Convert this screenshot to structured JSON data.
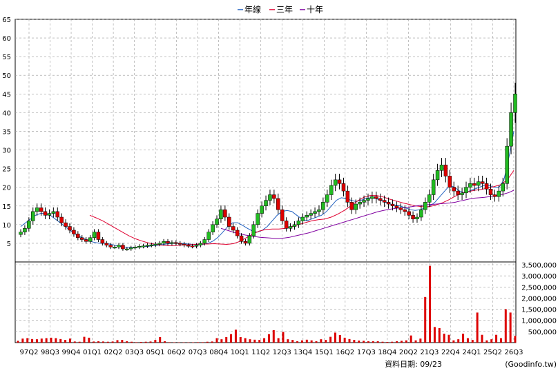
{
  "legend": {
    "items": [
      {
        "label": "年線",
        "color": "#2060c0"
      },
      {
        "label": "三年",
        "color": "#e00030"
      },
      {
        "label": "十年",
        "color": "#8000a0"
      }
    ]
  },
  "footer": {
    "date_label": "資料日期: 09/23",
    "source": "(Goodinfo.tw)"
  },
  "colors": {
    "up_candle": "#22bb22",
    "down_candle": "#dd0000",
    "volume_bar": "#dd0000",
    "grid": "#999999",
    "axis": "#000000"
  },
  "chart_data": [
    {
      "type": "candlestick",
      "title": "",
      "ylim": [
        0,
        65
      ],
      "yticks": [
        5,
        10,
        15,
        20,
        25,
        30,
        35,
        40,
        45,
        50,
        55,
        60,
        65
      ],
      "grid": true,
      "legend_position": "top-center",
      "x_tick_labels": [
        "97Q2",
        "98Q3",
        "99Q4",
        "01Q1",
        "02Q2",
        "03Q3",
        "05Q1",
        "06Q2",
        "07Q3",
        "08Q4",
        "10Q1",
        "11Q2",
        "12Q3",
        "13Q4",
        "15Q1",
        "16Q2",
        "17Q3",
        "18Q4",
        "20Q2",
        "21Q3",
        "22Q4",
        "24Q1",
        "25Q2",
        "26Q3"
      ],
      "close_series": [
        8.0,
        9.0,
        11.0,
        13.5,
        14.5,
        13.5,
        12.5,
        13.0,
        13.5,
        12.0,
        10.5,
        9.5,
        8.5,
        7.5,
        6.5,
        6.0,
        5.5,
        6.5,
        8.0,
        6.0,
        5.0,
        4.5,
        4.0,
        4.0,
        4.5,
        3.5,
        3.5,
        3.8,
        4.0,
        4.2,
        4.3,
        4.5,
        4.6,
        4.8,
        5.0,
        5.5,
        5.0,
        5.2,
        5.0,
        4.8,
        4.5,
        4.3,
        4.2,
        4.5,
        5.0,
        6.0,
        8.0,
        10.0,
        11.5,
        14.0,
        12.0,
        9.5,
        8.5,
        7.0,
        5.5,
        5.0,
        7.0,
        10.0,
        13.0,
        15.0,
        16.5,
        18.0,
        17.0,
        14.0,
        11.0,
        9.0,
        9.5,
        10.0,
        11.0,
        12.0,
        12.5,
        13.0,
        13.5,
        14.0,
        16.0,
        18.0,
        20.5,
        22.0,
        21.0,
        19.0,
        16.0,
        14.0,
        15.5,
        16.0,
        16.5,
        17.0,
        17.5,
        17.0,
        16.5,
        16.0,
        15.5,
        15.0,
        14.5,
        14.0,
        13.5,
        12.5,
        11.5,
        12.0,
        14.0,
        16.0,
        18.0,
        22.0,
        24.5,
        26.0,
        23.0,
        20.0,
        19.0,
        18.0,
        18.5,
        20.0,
        21.0,
        20.5,
        21.5,
        21.0,
        19.5,
        18.0,
        17.5,
        19.0,
        21.0,
        31.0,
        40.0,
        45.0
      ],
      "series": [
        {
          "name": "年線",
          "values": [
            9.5,
            10.5,
            11.5,
            12.5,
            13.0,
            13.0,
            12.5,
            11.5,
            10.5,
            9.5,
            8.5,
            7.5,
            6.8,
            6.2,
            5.6,
            5.2,
            5.0,
            5.0,
            4.8,
            4.5,
            4.2,
            4.0,
            3.9,
            3.9,
            4.0,
            4.1,
            4.2,
            4.4,
            4.5,
            4.7,
            4.9,
            5.0,
            5.0,
            4.9,
            4.8,
            4.7,
            4.6,
            4.7,
            5.0,
            5.6,
            6.6,
            8.0,
            9.5,
            10.5,
            10.5,
            9.8,
            9.0,
            8.3,
            8.0,
            8.5,
            9.5,
            11.0,
            12.5,
            13.5,
            13.8,
            13.5,
            12.5,
            11.5,
            11.0,
            11.5,
            12.0,
            12.5,
            13.5,
            15.0,
            16.5,
            17.2,
            17.0,
            16.5,
            16.2,
            16.5,
            17.0,
            17.2,
            17.0,
            16.5,
            16.0,
            15.5,
            15.2,
            15.0,
            14.5,
            14.0,
            13.8,
            14.0,
            14.5,
            15.0,
            16.0,
            17.5,
            19.0,
            20.5,
            20.0,
            19.0,
            18.5,
            19.0,
            19.5,
            20.0,
            20.5,
            20.5,
            20.0,
            20.0,
            22.0,
            28.0,
            35.0
          ]
        },
        {
          "name": "三年",
          "values": [
            12.5,
            11.8,
            11.0,
            10.0,
            9.0,
            8.0,
            7.0,
            6.2,
            5.6,
            5.1,
            4.7,
            4.5,
            4.4,
            4.4,
            4.5,
            4.6,
            4.7,
            4.8,
            4.8,
            4.9,
            4.8,
            4.7,
            4.9,
            5.5,
            6.5,
            7.5,
            8.3,
            8.7,
            8.8,
            8.8,
            9.0,
            9.5,
            10.0,
            10.5,
            11.0,
            11.3,
            11.5,
            12.0,
            12.8,
            13.8,
            15.0,
            16.3,
            17.3,
            17.8,
            17.8,
            17.4,
            16.8,
            16.3,
            15.8,
            15.4,
            15.0,
            14.8,
            14.8,
            15.2,
            15.8,
            16.6,
            17.6,
            18.4,
            18.8,
            19.2,
            19.4,
            19.8,
            20.2,
            20.7,
            22.0,
            24.5
          ]
        },
        {
          "name": "十年",
          "values": [
            9.0,
            8.6,
            8.2,
            7.8,
            7.5,
            7.2,
            7.0,
            6.8,
            6.6,
            6.5,
            6.4,
            6.3,
            6.3,
            6.4,
            6.6,
            6.9,
            7.2,
            7.5,
            7.8,
            8.2,
            8.6,
            9.0,
            9.4,
            9.8,
            10.2,
            10.6,
            11.0,
            11.4,
            11.8,
            12.2,
            12.6,
            13.0,
            13.4,
            13.7,
            14.0,
            14.2,
            14.4,
            14.5,
            14.6,
            14.8,
            15.0,
            15.2,
            15.3,
            15.4,
            15.5,
            15.6,
            15.7,
            15.8,
            16.0,
            16.3,
            16.6,
            16.9,
            17.1,
            17.2,
            17.3,
            17.5,
            17.7,
            17.9,
            18.2,
            18.6,
            19.2
          ]
        }
      ]
    },
    {
      "type": "bar",
      "title": "",
      "ylim": [
        0,
        3500000
      ],
      "yticks": [
        500000,
        1000000,
        1500000,
        2000000,
        2500000,
        3000000,
        3500000
      ],
      "ytick_labels": [
        "500,000",
        "1,000,000",
        "1,500,000",
        "2,000,000",
        "2,500,000",
        "3,000,000",
        "3,500,000"
      ],
      "values": [
        80000,
        180000,
        200000,
        160000,
        150000,
        180000,
        200000,
        220000,
        200000,
        160000,
        120000,
        180000,
        50000,
        40000,
        260000,
        220000,
        50000,
        60000,
        50000,
        40000,
        50000,
        110000,
        120000,
        60000,
        40000,
        20000,
        30000,
        40000,
        50000,
        120000,
        250000,
        60000,
        20000,
        15000,
        10000,
        10000,
        10000,
        15000,
        20000,
        20000,
        40000,
        50000,
        200000,
        150000,
        250000,
        380000,
        580000,
        250000,
        200000,
        150000,
        130000,
        120000,
        200000,
        380000,
        560000,
        200000,
        480000,
        150000,
        120000,
        60000,
        100000,
        130000,
        100000,
        60000,
        150000,
        120000,
        260000,
        450000,
        340000,
        220000,
        160000,
        120000,
        90000,
        80000,
        60000,
        60000,
        60000,
        40000,
        30000,
        40000,
        60000,
        80000,
        100000,
        320000,
        100000,
        180000,
        2050000,
        3450000,
        700000,
        650000,
        400000,
        350000,
        100000,
        150000,
        400000,
        200000,
        120000,
        1350000,
        350000,
        100000,
        150000,
        350000,
        200000,
        1500000,
        1350000,
        300000
      ]
    }
  ]
}
